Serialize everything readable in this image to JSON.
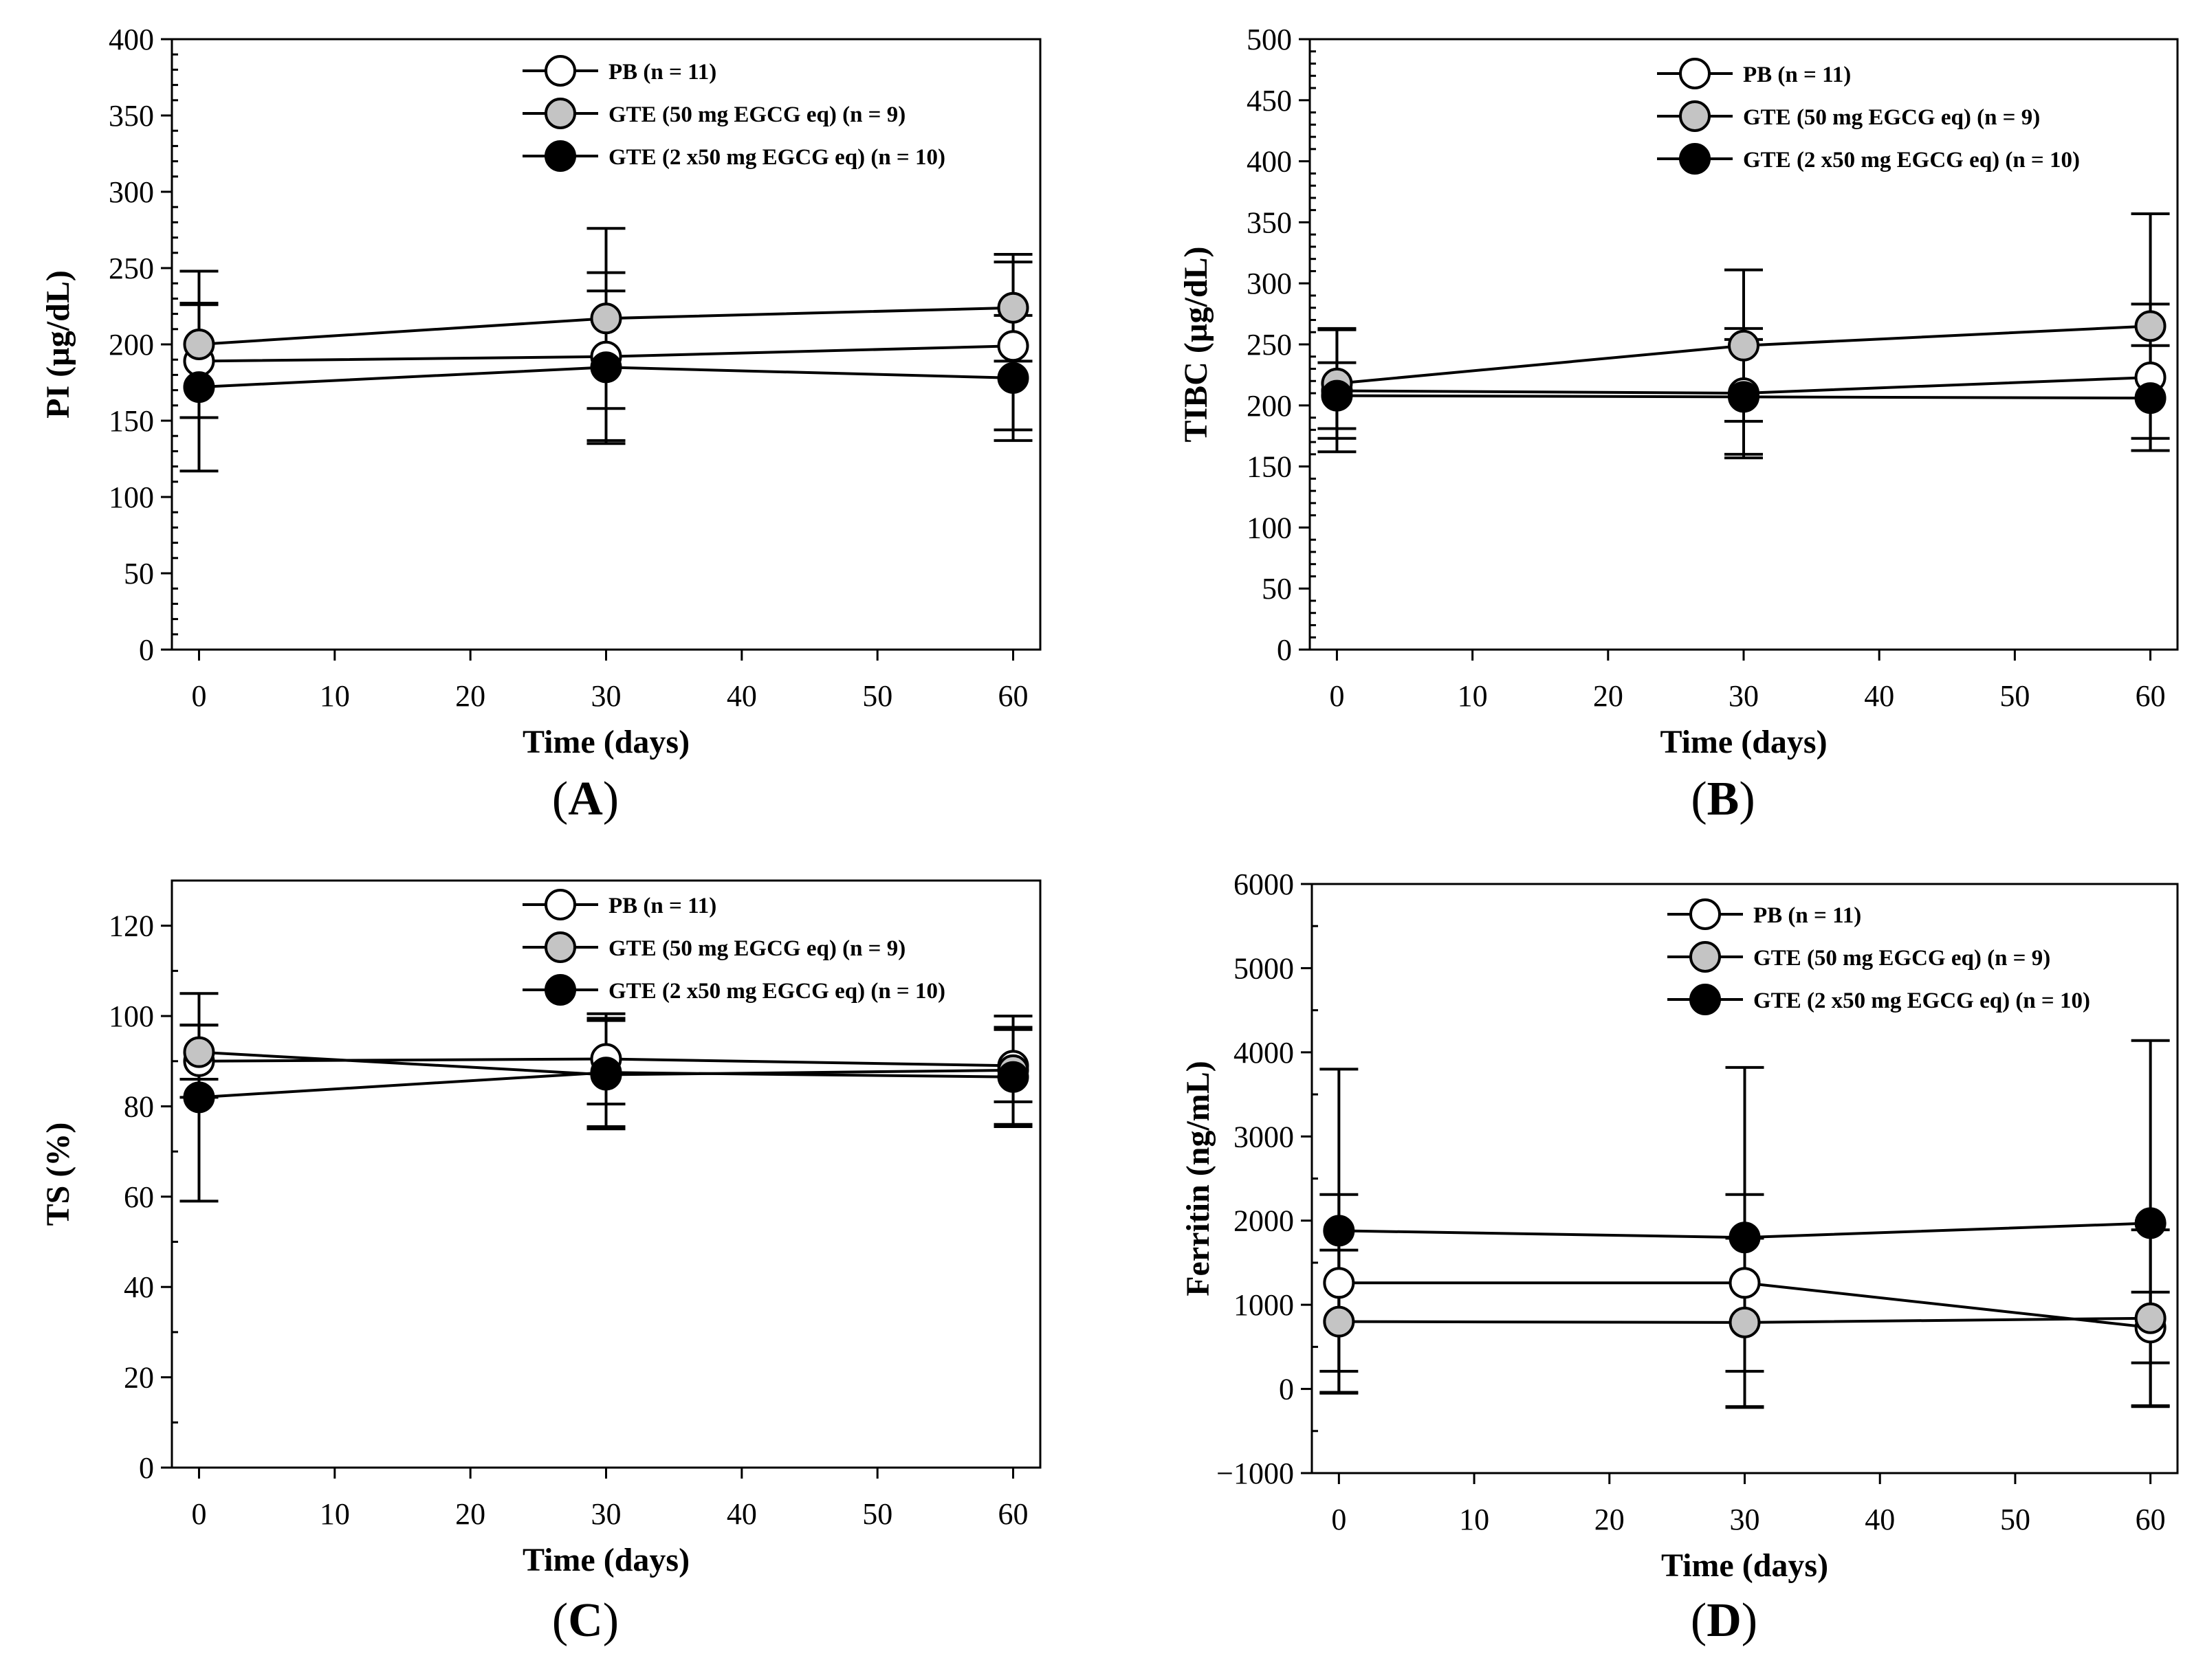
{
  "chart_data": [
    {
      "id": "A",
      "type": "line",
      "panel_label": "A",
      "xlabel": "Time (days)",
      "ylabel": "PI (µg/dL)",
      "xlim": [
        -2,
        62
      ],
      "ylim": [
        0,
        400
      ],
      "xticks": [
        0,
        10,
        20,
        30,
        40,
        50,
        60
      ],
      "yticks": [
        0,
        50,
        100,
        150,
        200,
        250,
        300,
        350,
        400
      ],
      "yminor": 10,
      "x": [
        0,
        30,
        60
      ],
      "legend_position": "top-right",
      "series": [
        {
          "name": "PB (n = 11)",
          "marker": "open",
          "values": [
            189,
            192,
            199
          ],
          "error": [
            37,
            55,
            55
          ]
        },
        {
          "name": "GTE (50 mg EGCG eq) (n = 9)",
          "marker": "grey",
          "values": [
            200,
            217,
            224
          ],
          "error": [
            48,
            59,
            35
          ]
        },
        {
          "name": "GTE (2 x50 mg EGCG eq) (n = 10)",
          "marker": "filled",
          "values": [
            172,
            185,
            178
          ],
          "error": [
            55,
            50,
            41
          ]
        }
      ]
    },
    {
      "id": "B",
      "type": "line",
      "panel_label": "B",
      "xlabel": "Time (days)",
      "ylabel": "TIBC (µg/dL)",
      "xlim": [
        -2,
        62
      ],
      "ylim": [
        0,
        500
      ],
      "xticks": [
        0,
        10,
        20,
        30,
        40,
        50,
        60
      ],
      "yticks": [
        0,
        50,
        100,
        150,
        200,
        250,
        300,
        350,
        400,
        450,
        500
      ],
      "yminor": 10,
      "x": [
        0,
        30,
        60
      ],
      "legend_position": "top-right",
      "series": [
        {
          "name": "PB (n = 11)",
          "marker": "open",
          "values": [
            212,
            210,
            223
          ],
          "error": [
            50,
            53,
            60
          ]
        },
        {
          "name": "GTE (50 mg EGCG eq) (n = 9)",
          "marker": "grey",
          "values": [
            218,
            249,
            265
          ],
          "error": [
            45,
            62,
            92
          ]
        },
        {
          "name": "GTE (2 x50 mg EGCG eq) (n = 10)",
          "marker": "filled",
          "values": [
            208,
            207,
            206
          ],
          "error": [
            27,
            47,
            43
          ]
        }
      ]
    },
    {
      "id": "C",
      "type": "line",
      "panel_label": "C",
      "xlabel": "Time (days)",
      "ylabel": "TS (%)",
      "xlim": [
        -2,
        62
      ],
      "ylim": [
        0,
        130
      ],
      "xticks": [
        0,
        10,
        20,
        30,
        40,
        50,
        60
      ],
      "yticks": [
        0,
        20,
        40,
        60,
        80,
        100,
        120
      ],
      "yminor": 10,
      "x": [
        0,
        30,
        60
      ],
      "legend_position": "top-right",
      "series": [
        {
          "name": "PB (n = 11)",
          "marker": "open",
          "values": [
            90,
            90.5,
            89
          ],
          "error": [
            8,
            10,
            8
          ]
        },
        {
          "name": "GTE (50 mg EGCG eq) (n = 9)",
          "marker": "grey",
          "values": [
            92,
            87,
            88
          ],
          "error": [
            6,
            12,
            12
          ]
        },
        {
          "name": "GTE (2 x50 mg EGCG eq) (n = 10)",
          "marker": "filled",
          "values": [
            82,
            87.5,
            86.5
          ],
          "error": [
            23,
            12,
            11
          ]
        }
      ]
    },
    {
      "id": "D",
      "type": "line",
      "panel_label": "D",
      "xlabel": "Time (days)",
      "ylabel": "Ferritin (ng/mL)",
      "xlim": [
        -2,
        62
      ],
      "ylim": [
        -1000,
        6000
      ],
      "xticks": [
        0,
        10,
        20,
        30,
        40,
        50,
        60
      ],
      "yticks": [
        -1000,
        0,
        1000,
        2000,
        3000,
        4000,
        5000,
        6000
      ],
      "yminor": 500,
      "x": [
        0,
        30,
        60
      ],
      "legend_position": "top-right",
      "series": [
        {
          "name": "PB (n = 11)",
          "marker": "open",
          "values": [
            1260,
            1260,
            730
          ],
          "error": [
            1050,
            1050,
            420
          ]
        },
        {
          "name": "GTE (50 mg EGCG eq) (n = 9)",
          "marker": "grey",
          "values": [
            800,
            790,
            840
          ],
          "error": [
            850,
            1000,
            1050
          ]
        },
        {
          "name": "GTE (2 x50 mg EGCG eq) (n = 10)",
          "marker": "filled",
          "values": [
            1880,
            1800,
            1970
          ],
          "error": [
            1920,
            2020,
            2170
          ]
        }
      ]
    }
  ]
}
